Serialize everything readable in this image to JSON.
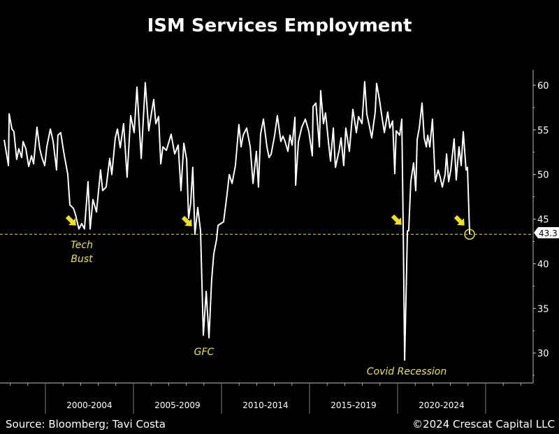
{
  "chart_data": {
    "type": "line",
    "title": "ISM Services Employment",
    "xlabel": "",
    "ylabel": "",
    "ylim": [
      27,
      61.5
    ],
    "xlim": [
      1997.4,
      2027.6
    ],
    "y_ticks": [
      "30",
      "35",
      "40",
      "45",
      "50",
      "55",
      "60"
    ],
    "x_tick_labels": [
      "2000-2004",
      "2005-2009",
      "2010-2014",
      "2015-2019",
      "2020-2024"
    ],
    "grid": false,
    "line_color": "#ffffff",
    "accent_color": "#f0e020",
    "last_value_label": "43.3",
    "reference_level": 43.3,
    "annotations": [
      {
        "text_lines": [
          "Tech",
          "Bust"
        ],
        "x": 2002.0,
        "y": 43.3
      },
      {
        "text_lines": [
          "GFC"
        ],
        "x": 2008.8,
        "y": 43.3
      },
      {
        "text_lines": [
          "Covid Recession"
        ],
        "x": 2020.3,
        "y": 43.3
      },
      {
        "text_lines": [],
        "x": 2024.0,
        "y": 43.3
      }
    ],
    "series": [
      {
        "x": [
          1997.66,
          1997.9,
          1997.94,
          1998.1,
          1998.21,
          1998.37,
          1998.49,
          1998.65,
          1998.73,
          1998.89,
          1999.05,
          1999.21,
          1999.33,
          1999.52,
          1999.68,
          1999.8,
          1999.96,
          2000.08,
          2000.28,
          2000.44,
          2000.63,
          2000.71,
          2000.87,
          2001.03,
          2001.27,
          2001.39,
          2001.59,
          2001.71,
          2001.9,
          2002.06,
          2002.22,
          2002.42,
          2002.54,
          2002.7,
          2002.9,
          2003.13,
          2003.25,
          2003.45,
          2003.65,
          2003.77,
          2003.97,
          2004.09,
          2004.25,
          2004.44,
          2004.64,
          2004.84,
          2005.04,
          2005.2,
          2005.44,
          2005.67,
          2005.87,
          2006.03,
          2006.15,
          2006.27,
          2006.43,
          2006.55,
          2006.67,
          2006.87,
          2007.14,
          2007.34,
          2007.54,
          2007.7,
          2007.86,
          2008.02,
          2008.13,
          2008.25,
          2008.37,
          2008.49,
          2008.65,
          2008.81,
          2008.97,
          2009.13,
          2009.29,
          2009.44,
          2009.56,
          2009.72,
          2009.8,
          2010.12,
          2010.32,
          2010.44,
          2010.6,
          2010.79,
          2010.99,
          2011.11,
          2011.23,
          2011.43,
          2011.63,
          2011.79,
          2011.98,
          2012.1,
          2012.22,
          2012.38,
          2012.58,
          2012.7,
          2012.82,
          2013.02,
          2013.17,
          2013.37,
          2013.49,
          2013.61,
          2013.77,
          2013.89,
          2014.01,
          2014.17,
          2014.21,
          2014.37,
          2014.56,
          2014.76,
          2014.96,
          2015.16,
          2015.2,
          2015.36,
          2015.56,
          2015.63,
          2015.79,
          2015.91,
          2016.07,
          2016.19,
          2016.35,
          2016.47,
          2016.67,
          2016.79,
          2016.94,
          2017.06,
          2017.26,
          2017.46,
          2017.66,
          2017.78,
          2017.98,
          2018.13,
          2018.25,
          2018.37,
          2018.53,
          2018.73,
          2018.81,
          2018.97,
          2019.13,
          2019.25,
          2019.44,
          2019.56,
          2019.72,
          2019.84,
          2019.92,
          2020.12,
          2020.24,
          2020.32,
          2020.4,
          2020.56,
          2020.63,
          2020.75,
          2020.91,
          2021.03,
          2021.11,
          2021.23,
          2021.39,
          2021.51,
          2021.63,
          2021.71,
          2021.83,
          2021.98,
          2022.14,
          2022.3,
          2022.42,
          2022.54,
          2022.7,
          2022.78,
          2022.9,
          2023.02,
          2023.21,
          2023.33,
          2023.49,
          2023.61,
          2023.73,
          2023.89,
          2023.97,
          2024.09
        ],
        "values": [
          53.9,
          51.0,
          56.8,
          55.1,
          54.8,
          51.7,
          52.9,
          51.9,
          53.7,
          52.9,
          50.9,
          52.1,
          51.2,
          55.3,
          52.9,
          51.9,
          51.0,
          53.1,
          55.1,
          53.7,
          50.5,
          54.4,
          54.7,
          52.6,
          50.0,
          46.6,
          46.2,
          45.5,
          43.9,
          44.5,
          43.9,
          49.2,
          43.9,
          47.2,
          45.8,
          50.5,
          48.2,
          48.6,
          51.8,
          50.0,
          54.1,
          55.1,
          53.0,
          55.7,
          49.7,
          56.6,
          54.7,
          59.8,
          51.8,
          60.3,
          54.9,
          57.0,
          58.4,
          55.7,
          56.5,
          51.2,
          53.1,
          52.7,
          54.5,
          52.3,
          53.3,
          48.2,
          53.5,
          51.7,
          45.1,
          46.8,
          50.8,
          43.3,
          46.3,
          43.7,
          32.0,
          36.9,
          31.7,
          38.2,
          41.1,
          42.7,
          44.3,
          44.7,
          47.9,
          50.0,
          49.0,
          51.0,
          55.6,
          53.1,
          54.4,
          55.2,
          53.1,
          49.0,
          52.6,
          48.6,
          54.5,
          56.2,
          53.1,
          51.9,
          52.3,
          54.4,
          56.6,
          53.7,
          54.3,
          53.7,
          52.6,
          54.4,
          53.3,
          56.4,
          48.8,
          53.7,
          55.3,
          56.2,
          54.8,
          52.1,
          57.6,
          58.0,
          53.1,
          59.4,
          55.7,
          56.9,
          53.7,
          51.5,
          55.2,
          50.8,
          52.6,
          54.1,
          51.0,
          55.2,
          52.6,
          57.3,
          54.7,
          56.5,
          55.7,
          60.4,
          56.8,
          55.7,
          54.1,
          57.0,
          60.2,
          58.4,
          56.2,
          54.7,
          57.0,
          55.2,
          56.0,
          50.1,
          54.9,
          54.4,
          56.2,
          43.7,
          29.2,
          43.7,
          43.7,
          49.2,
          51.3,
          48.2,
          53.9,
          55.2,
          58.0,
          54.1,
          53.1,
          54.4,
          53.1,
          56.2,
          49.2,
          50.5,
          49.7,
          48.6,
          50.0,
          52.3,
          49.2,
          50.5,
          54.0,
          49.4,
          53.1,
          51.0,
          54.8,
          50.5,
          50.8,
          43.3
        ]
      }
    ]
  },
  "footer": {
    "source": "Source: Bloomberg; Tavi Costa",
    "copyright": "©2024 Crescat Capital LLC"
  }
}
